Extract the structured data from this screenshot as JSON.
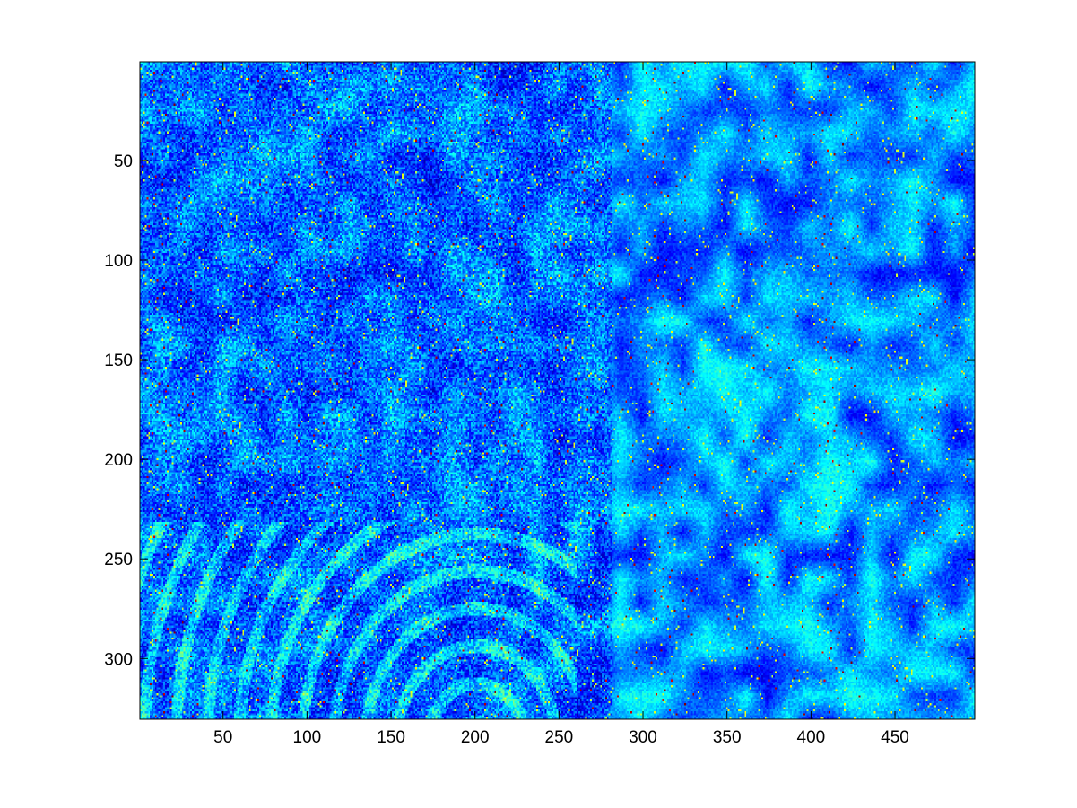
{
  "chart_data": {
    "type": "heatmap",
    "title": "",
    "xlabel": "",
    "ylabel": "",
    "grid": false,
    "colormap": "jet",
    "data_extent": {
      "cols": 497,
      "rows": 330
    },
    "xlim": [
      0.5,
      497.5
    ],
    "ylim": [
      0.5,
      330.5
    ],
    "y_direction": "reverse",
    "xticks": [
      50,
      100,
      150,
      200,
      250,
      300,
      350,
      400,
      450
    ],
    "yticks": [
      50,
      100,
      150,
      200,
      250,
      300
    ],
    "xtick_labels": [
      "50",
      "100",
      "150",
      "200",
      "250",
      "300",
      "350",
      "400",
      "450"
    ],
    "ytick_labels": [
      "50",
      "100",
      "150",
      "200",
      "250",
      "300"
    ],
    "value_distribution": "dominated by dark-to-medium blue (low values), scattered cyan/yellow, sparse red (high values)"
  },
  "colors": {
    "background": "#ffffff",
    "axes_frame": "#000000",
    "jet_low": "#00008f",
    "jet_mid": "#00ffff",
    "jet_high": "#800000"
  }
}
